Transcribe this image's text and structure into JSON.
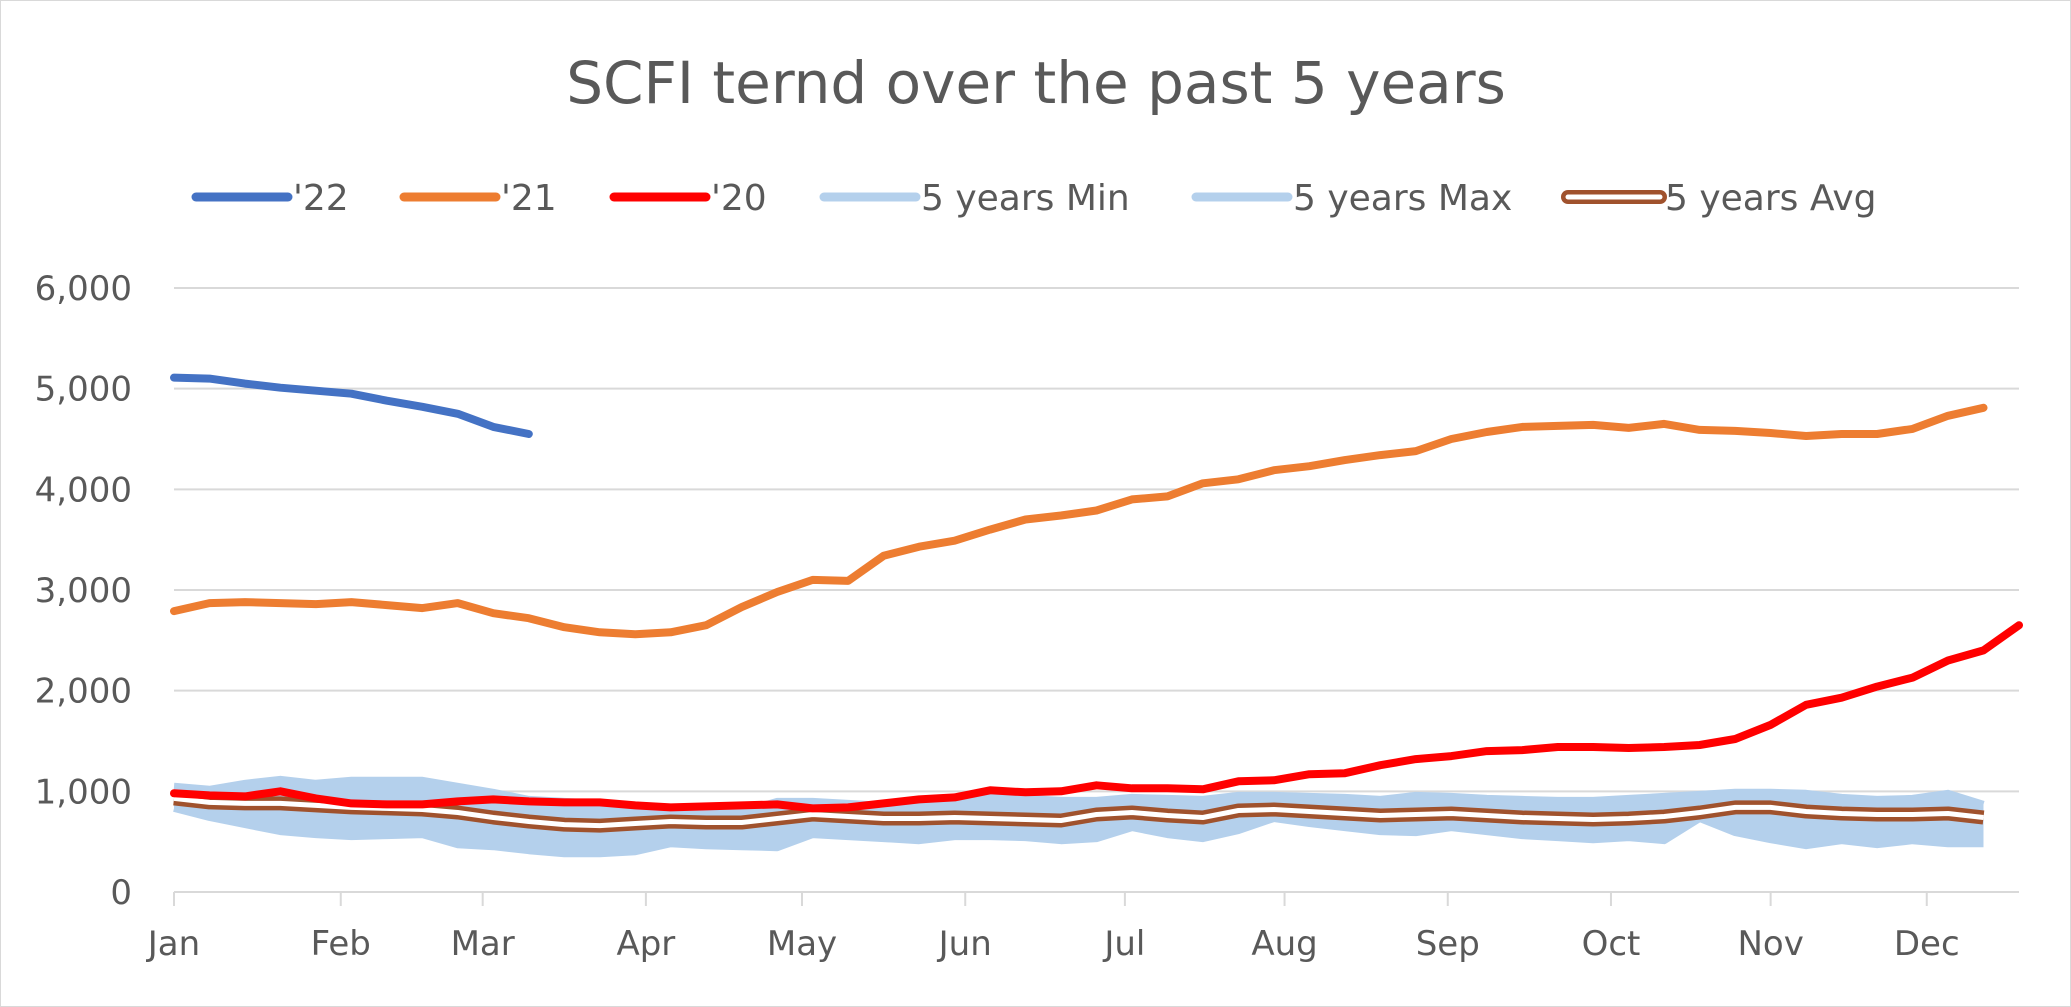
{
  "chart_data": {
    "type": "line",
    "title": "SCFI ternd over the past 5 years",
    "xlabel": "",
    "ylabel": "",
    "ylim": [
      0,
      6000
    ],
    "yticks": [
      0,
      1000,
      2000,
      3000,
      4000,
      5000,
      6000
    ],
    "ytick_labels": [
      "0",
      "1,000",
      "2,000",
      "3,000",
      "4,000",
      "5,000",
      "6,000"
    ],
    "x_range": [
      1,
      53
    ],
    "month_labels": [
      {
        "label": "Jan",
        "week": 1
      },
      {
        "label": "Feb",
        "week": 5.7
      },
      {
        "label": "Mar",
        "week": 9.7
      },
      {
        "label": "Apr",
        "week": 14.3
      },
      {
        "label": "May",
        "week": 18.7
      },
      {
        "label": "Jun",
        "week": 23.3
      },
      {
        "label": "Jul",
        "week": 27.8
      },
      {
        "label": "Aug",
        "week": 32.3
      },
      {
        "label": "Sep",
        "week": 36.9
      },
      {
        "label": "Oct",
        "week": 41.5
      },
      {
        "label": "Nov",
        "week": 46.0
      },
      {
        "label": "Dec",
        "week": 50.4
      }
    ],
    "grid": true,
    "legend_position": "top",
    "series": [
      {
        "name": "'22",
        "color": "#4472c4",
        "values": [
          5110,
          5100,
          5050,
          5010,
          4980,
          4950,
          4880,
          4820,
          4750,
          4620,
          4550
        ]
      },
      {
        "name": "'21",
        "color": "#ed7d31",
        "values": [
          2790,
          2870,
          2880,
          2870,
          2860,
          2880,
          2850,
          2820,
          2870,
          2770,
          2720,
          2630,
          2580,
          2560,
          2580,
          2650,
          2830,
          2980,
          3100,
          3090,
          3340,
          3430,
          3490,
          3600,
          3700,
          3740,
          3790,
          3900,
          3930,
          4060,
          4100,
          4190,
          4230,
          4290,
          4340,
          4380,
          4500,
          4570,
          4620,
          4630,
          4640,
          4610,
          4650,
          4590,
          4580,
          4560,
          4530,
          4550,
          4550,
          4600,
          4730,
          4810
        ]
      },
      {
        "name": "'20",
        "color": "#ff0000",
        "values": [
          980,
          960,
          950,
          1000,
          930,
          880,
          870,
          870,
          900,
          920,
          900,
          890,
          890,
          860,
          840,
          850,
          860,
          870,
          830,
          840,
          880,
          920,
          940,
          1010,
          990,
          1000,
          1060,
          1030,
          1030,
          1020,
          1100,
          1110,
          1170,
          1180,
          1260,
          1320,
          1350,
          1400,
          1410,
          1440,
          1440,
          1430,
          1440,
          1460,
          1520,
          1660,
          1860,
          1930,
          2040,
          2130,
          2300,
          2400,
          2650
        ]
      },
      {
        "name": "5 years Min",
        "color": "#b4d0ec",
        "values": [
          830,
          740,
          670,
          600,
          570,
          550,
          560,
          570,
          470,
          450,
          410,
          380,
          380,
          400,
          480,
          460,
          450,
          440,
          570,
          550,
          530,
          510,
          550,
          550,
          540,
          510,
          530,
          640,
          570,
          530,
          610,
          730,
          680,
          640,
          600,
          590,
          640,
          600,
          560,
          540,
          520,
          540,
          510,
          730,
          590,
          520,
          460,
          510,
          470,
          510,
          480,
          480
        ]
      },
      {
        "name": "5 years Max",
        "color": "#b4d0ec",
        "values": [
          1050,
          1020,
          1080,
          1120,
          1080,
          1110,
          1110,
          1110,
          1050,
          990,
          920,
          900,
          880,
          850,
          830,
          820,
          800,
          900,
          900,
          880,
          860,
          910,
          920,
          940,
          930,
          910,
          910,
          940,
          930,
          920,
          960,
          960,
          950,
          940,
          920,
          960,
          950,
          930,
          920,
          910,
          910,
          930,
          950,
          970,
          990,
          990,
          980,
          940,
          920,
          930,
          980,
          870
        ]
      },
      {
        "name": "5 years Avg",
        "color": "#a0522d",
        "values": [
          930,
          890,
          880,
          880,
          860,
          840,
          830,
          820,
          790,
          740,
          700,
          670,
          660,
          680,
          700,
          690,
          690,
          730,
          770,
          750,
          730,
          730,
          740,
          730,
          720,
          710,
          770,
          790,
          760,
          740,
          810,
          820,
          800,
          780,
          760,
          770,
          780,
          760,
          740,
          730,
          720,
          730,
          750,
          790,
          840,
          840,
          800,
          780,
          770,
          770,
          780,
          740
        ]
      }
    ]
  }
}
